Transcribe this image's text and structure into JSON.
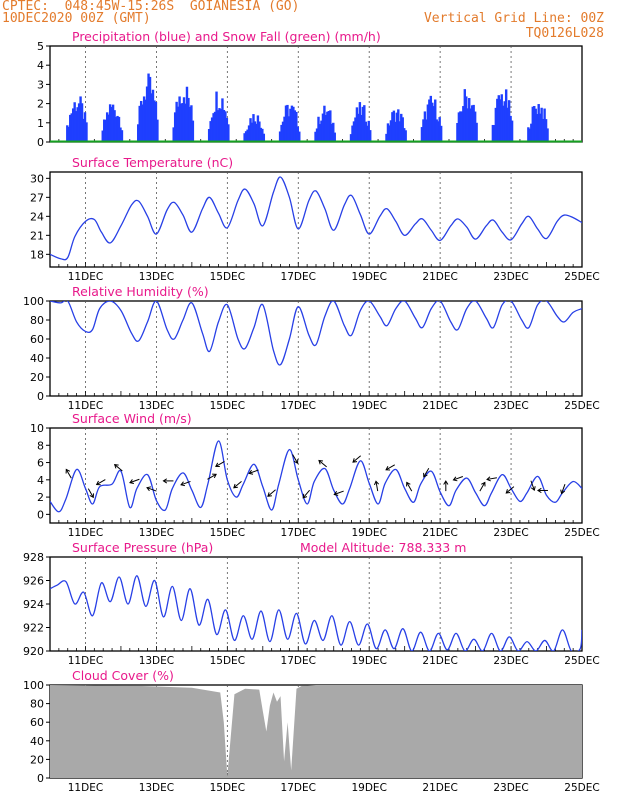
{
  "header": {
    "line1": "CPTEC:  048:45W-15:26S  GOIANESIA (GO)",
    "line2": "10DEC2020 00Z (GMT)",
    "grid_note": "Vertical Grid Line: 00Z",
    "code": "TQ0126L028",
    "accent": "#e37b2c",
    "title_color": "#e8198b"
  },
  "x_tick_labels": [
    "11DEC",
    "13DEC",
    "15DEC",
    "17DEC",
    "19DEC",
    "21DEC",
    "23DEC",
    "25DEC"
  ],
  "chart_data": [
    {
      "id": "precip",
      "type": "bar",
      "title": "Precipitation (blue) and Snow Fall (green) (mm/h)",
      "ylim": [
        0,
        5
      ],
      "yticks": [
        0,
        1,
        2,
        3,
        4,
        5
      ],
      "color": "#1f3fff",
      "snow_color": "#16a020",
      "x_days": [
        0.77,
        1.77,
        2.77,
        3.77,
        4.77,
        5.77,
        6.77,
        7.77,
        8.77,
        9.77,
        10.77,
        11.77,
        12.77,
        13.77
      ],
      "day_peaks": [
        2.6,
        2.3,
        3.6,
        3.4,
        3.0,
        1.7,
        2.2,
        2.0,
        2.1,
        1.9,
        2.5,
        3.0,
        3.0,
        2.4
      ],
      "snow_values": [
        0
      ]
    },
    {
      "id": "temp",
      "type": "line",
      "title": "Surface Temperature (nC)",
      "ylim": [
        16,
        31
      ],
      "yticks": [
        18,
        21,
        24,
        27,
        30
      ],
      "color": "#2840e6",
      "x": [
        0,
        0.3,
        0.5,
        0.7,
        1.0,
        1.25,
        1.45,
        1.7,
        2.0,
        2.3,
        2.5,
        2.75,
        3.0,
        3.3,
        3.5,
        3.75,
        4.0,
        4.3,
        4.5,
        4.75,
        5.0,
        5.3,
        5.5,
        5.75,
        6.0,
        6.3,
        6.5,
        6.75,
        7.0,
        7.3,
        7.5,
        7.75,
        8.0,
        8.3,
        8.5,
        8.75,
        9.0,
        9.3,
        9.5,
        9.75,
        10.0,
        10.3,
        10.5,
        10.75,
        11.0,
        11.3,
        11.5,
        11.75,
        12.0,
        12.3,
        12.5,
        12.75,
        13.0,
        13.3,
        13.5,
        13.75,
        14.0,
        14.3,
        14.5,
        14.75,
        15.0
      ],
      "y": [
        18,
        17.3,
        17.5,
        20.8,
        23.2,
        23.5,
        21.5,
        19.8,
        22.5,
        25.8,
        26.4,
        24.0,
        21.2,
        25.0,
        26.2,
        24.2,
        21.5,
        25.2,
        27.0,
        24.5,
        22.2,
        26.5,
        28.3,
        26.0,
        22.5,
        27.8,
        30.2,
        27.0,
        22.0,
        26.5,
        28.0,
        25.2,
        21.8,
        25.8,
        27.3,
        24.3,
        21.2,
        24.0,
        25.2,
        23.2,
        21.0,
        22.8,
        23.6,
        21.8,
        20.2,
        22.5,
        23.6,
        22.3,
        20.4,
        22.5,
        23.4,
        21.5,
        20.3,
        22.8,
        24.0,
        22.0,
        20.5,
        23.2,
        24.2,
        23.8,
        23.0
      ]
    },
    {
      "id": "rh",
      "type": "line",
      "title": "Relative Humidity (%)",
      "ylim": [
        0,
        100
      ],
      "yticks": [
        0,
        20,
        40,
        60,
        80,
        100
      ],
      "color": "#2840e6",
      "x": [
        0,
        0.3,
        0.5,
        0.75,
        1.0,
        1.2,
        1.4,
        1.7,
        2.0,
        2.3,
        2.5,
        2.75,
        3.0,
        3.3,
        3.5,
        3.75,
        4.0,
        4.3,
        4.5,
        4.75,
        5.0,
        5.3,
        5.5,
        5.75,
        6.0,
        6.3,
        6.5,
        6.75,
        7.0,
        7.3,
        7.5,
        7.75,
        8.0,
        8.3,
        8.5,
        8.75,
        9.0,
        9.3,
        9.5,
        9.75,
        10.0,
        10.3,
        10.5,
        10.75,
        11.0,
        11.3,
        11.5,
        11.75,
        12.0,
        12.3,
        12.5,
        12.75,
        13.0,
        13.3,
        13.5,
        13.75,
        14.0,
        14.3,
        14.5,
        14.75,
        15.0
      ],
      "y": [
        100,
        98,
        100,
        78,
        68,
        70,
        92,
        100,
        90,
        66,
        58,
        78,
        100,
        70,
        60,
        80,
        98,
        66,
        47,
        78,
        96,
        60,
        50,
        72,
        96,
        48,
        33,
        60,
        94,
        64,
        54,
        84,
        100,
        74,
        64,
        90,
        100,
        84,
        74,
        92,
        100,
        82,
        72,
        92,
        100,
        78,
        70,
        92,
        100,
        82,
        72,
        96,
        100,
        80,
        72,
        96,
        100,
        84,
        78,
        88,
        92
      ]
    },
    {
      "id": "wind",
      "type": "line",
      "title": "Surface Wind (m/s)",
      "ylim": [
        -1,
        10
      ],
      "yticks": [
        0,
        2,
        4,
        6,
        8,
        10
      ],
      "color": "#2840e6",
      "arrow_color": "#000000",
      "x": [
        0,
        0.25,
        0.45,
        0.75,
        1.0,
        1.2,
        1.4,
        1.75,
        2.0,
        2.25,
        2.45,
        2.75,
        3.0,
        3.25,
        3.45,
        3.75,
        4.0,
        4.25,
        4.45,
        4.75,
        5.0,
        5.25,
        5.45,
        5.75,
        6.0,
        6.25,
        6.45,
        6.75,
        7.0,
        7.25,
        7.45,
        7.75,
        8.0,
        8.25,
        8.45,
        8.75,
        9.0,
        9.25,
        9.45,
        9.75,
        10.0,
        10.25,
        10.45,
        10.75,
        11.0,
        11.25,
        11.45,
        11.75,
        12.0,
        12.25,
        12.45,
        12.75,
        13.0,
        13.25,
        13.45,
        13.75,
        14.0,
        14.25,
        14.45,
        14.75,
        15.0
      ],
      "y": [
        1.5,
        0.3,
        1.8,
        5.2,
        3.0,
        1.2,
        3.2,
        3.5,
        5.0,
        0.8,
        3.0,
        4.6,
        1.6,
        0.5,
        3.0,
        4.8,
        2.8,
        0.8,
        3.5,
        8.5,
        4.0,
        2.0,
        3.5,
        5.8,
        3.2,
        0.5,
        3.5,
        7.5,
        4.0,
        1.2,
        3.8,
        5.3,
        2.8,
        1.2,
        3.0,
        6.2,
        3.6,
        1.2,
        3.6,
        5.2,
        3.0,
        1.4,
        3.5,
        5.0,
        2.6,
        1.0,
        2.8,
        4.2,
        2.5,
        1.0,
        2.5,
        4.6,
        3.0,
        1.5,
        2.5,
        4.4,
        2.2,
        1.4,
        2.5,
        3.8,
        3.0
      ]
    },
    {
      "id": "pressure",
      "type": "line",
      "title": "Surface Pressure (hPa)",
      "annotation": "Model Altitude: 788.333 m",
      "ylim": [
        920,
        928
      ],
      "yticks": [
        920,
        922,
        924,
        926,
        928
      ],
      "color": "#2840e6",
      "x": [
        0,
        0.2,
        0.45,
        0.7,
        0.95,
        1.2,
        1.45,
        1.7,
        1.95,
        2.2,
        2.45,
        2.7,
        2.95,
        3.2,
        3.45,
        3.7,
        3.95,
        4.2,
        4.45,
        4.7,
        4.95,
        5.2,
        5.45,
        5.7,
        5.95,
        6.2,
        6.45,
        6.7,
        6.95,
        7.2,
        7.45,
        7.7,
        7.95,
        8.2,
        8.45,
        8.7,
        8.95,
        9.2,
        9.45,
        9.7,
        9.95,
        10.2,
        10.45,
        10.7,
        10.95,
        11.2,
        11.45,
        11.7,
        11.95,
        12.2,
        12.45,
        12.7,
        12.95,
        13.2,
        13.45,
        13.7,
        13.95,
        14.2,
        14.45,
        14.7,
        14.95,
        15.0
      ],
      "y": [
        925.3,
        925.6,
        925.9,
        924.0,
        925.0,
        923.0,
        925.8,
        924.2,
        926.3,
        924.0,
        926.4,
        923.8,
        926.0,
        922.9,
        925.5,
        922.6,
        925.3,
        922.2,
        924.4,
        921.4,
        923.5,
        920.9,
        923.0,
        921.0,
        923.4,
        920.8,
        923.5,
        921.0,
        923.2,
        920.6,
        922.6,
        920.9,
        923.0,
        920.5,
        922.5,
        920.5,
        922.3,
        920.2,
        921.8,
        920.2,
        921.9,
        920.0,
        921.6,
        920.0,
        921.5,
        920.1,
        921.5,
        920.0,
        921.0,
        920.0,
        921.5,
        920.0,
        921.2,
        920.0,
        920.8,
        920.0,
        920.9,
        920.0,
        921.8,
        920.0,
        920.2,
        921.8
      ]
    },
    {
      "id": "cloud",
      "type": "area",
      "title": "Cloud Cover (%)",
      "ylim": [
        0,
        100
      ],
      "yticks": [
        0,
        20,
        40,
        60,
        80,
        100
      ],
      "color": "#a9a9a9",
      "x": [
        0,
        2.5,
        4.0,
        4.8,
        4.9,
        5.0,
        5.2,
        5.5,
        5.9,
        6.0,
        6.1,
        6.2,
        6.3,
        6.4,
        6.5,
        6.6,
        6.7,
        6.8,
        6.95,
        7.1,
        7.5,
        15.0
      ],
      "y": [
        100,
        99,
        97,
        92,
        60,
        2,
        90,
        96,
        95,
        72,
        50,
        78,
        92,
        82,
        88,
        18,
        60,
        8,
        96,
        99,
        100,
        100
      ]
    }
  ]
}
